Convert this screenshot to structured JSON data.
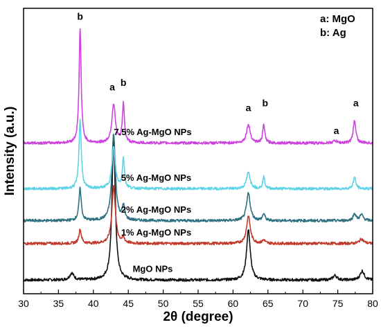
{
  "chart_data": {
    "type": "line",
    "title": "",
    "xlabel": "2θ (degree)",
    "ylabel": "Intensity (a.u.)",
    "xlim": [
      30,
      80
    ],
    "xticks": [
      "30",
      "35",
      "40",
      "45",
      "50",
      "55",
      "60",
      "65",
      "70",
      "75",
      "80"
    ],
    "y_ticks_shown": false,
    "grid": false,
    "legend_position": "top-right",
    "legend_entries": [
      "a: MgO",
      "b: Ag"
    ],
    "series": [
      {
        "name": "MgO NPs",
        "color": "#111111",
        "baseline": 0.06,
        "peaks": [
          {
            "x": 36.9,
            "height": 0.03,
            "width": 0.35
          },
          {
            "x": 42.9,
            "height": 0.63,
            "width": 0.28
          },
          {
            "x": 62.2,
            "height": 0.22,
            "width": 0.32
          },
          {
            "x": 74.6,
            "height": 0.02,
            "width": 0.35
          },
          {
            "x": 78.5,
            "height": 0.04,
            "width": 0.35
          }
        ]
      },
      {
        "name": "1% Ag-MgO NPs",
        "color": "#c0392b",
        "baseline": 0.22,
        "peaks": [
          {
            "x": 38.1,
            "height": 0.06,
            "width": 0.22
          },
          {
            "x": 42.9,
            "height": 0.25,
            "width": 0.3
          },
          {
            "x": 44.3,
            "height": 0.02,
            "width": 0.22
          },
          {
            "x": 62.2,
            "height": 0.12,
            "width": 0.32
          },
          {
            "x": 64.4,
            "height": 0.015,
            "width": 0.22
          },
          {
            "x": 78.4,
            "height": 0.02,
            "width": 0.35
          }
        ]
      },
      {
        "name": "2% Ag-MgO NPs",
        "color": "#2e6f80",
        "baseline": 0.32,
        "peaks": [
          {
            "x": 38.1,
            "height": 0.14,
            "width": 0.2
          },
          {
            "x": 42.9,
            "height": 0.38,
            "width": 0.3
          },
          {
            "x": 44.3,
            "height": 0.06,
            "width": 0.2
          },
          {
            "x": 62.2,
            "height": 0.12,
            "width": 0.32
          },
          {
            "x": 64.4,
            "height": 0.03,
            "width": 0.2
          },
          {
            "x": 77.4,
            "height": 0.03,
            "width": 0.25
          },
          {
            "x": 78.4,
            "height": 0.025,
            "width": 0.3
          }
        ]
      },
      {
        "name": "5% Ag-MgO NPs",
        "color": "#5fd3e6",
        "baseline": 0.46,
        "peaks": [
          {
            "x": 38.1,
            "height": 0.3,
            "width": 0.2
          },
          {
            "x": 42.9,
            "height": 0.18,
            "width": 0.3
          },
          {
            "x": 44.3,
            "height": 0.13,
            "width": 0.18
          },
          {
            "x": 62.2,
            "height": 0.07,
            "width": 0.32
          },
          {
            "x": 64.4,
            "height": 0.05,
            "width": 0.18
          },
          {
            "x": 77.4,
            "height": 0.05,
            "width": 0.22
          }
        ]
      },
      {
        "name": "7.5% Ag-MgO NPs",
        "color": "#cc44dd",
        "baseline": 0.66,
        "peaks": [
          {
            "x": 38.1,
            "height": 0.5,
            "width": 0.18
          },
          {
            "x": 42.9,
            "height": 0.17,
            "width": 0.3
          },
          {
            "x": 44.3,
            "height": 0.17,
            "width": 0.18
          },
          {
            "x": 62.2,
            "height": 0.08,
            "width": 0.32
          },
          {
            "x": 64.4,
            "height": 0.08,
            "width": 0.18
          },
          {
            "x": 74.6,
            "height": 0.01,
            "width": 0.3
          },
          {
            "x": 77.4,
            "height": 0.1,
            "width": 0.22
          }
        ]
      }
    ],
    "peak_annotations": [
      {
        "text": "b",
        "x": 38.1,
        "y": 1.2
      },
      {
        "text": "a",
        "x": 42.7,
        "y": 0.89
      },
      {
        "text": "b",
        "x": 44.3,
        "y": 0.91
      },
      {
        "text": "a",
        "x": 62.2,
        "y": 0.8
      },
      {
        "text": "b",
        "x": 64.6,
        "y": 0.82
      },
      {
        "text": "a",
        "x": 74.8,
        "y": 0.7
      },
      {
        "text": "a",
        "x": 77.6,
        "y": 0.82
      }
    ]
  }
}
